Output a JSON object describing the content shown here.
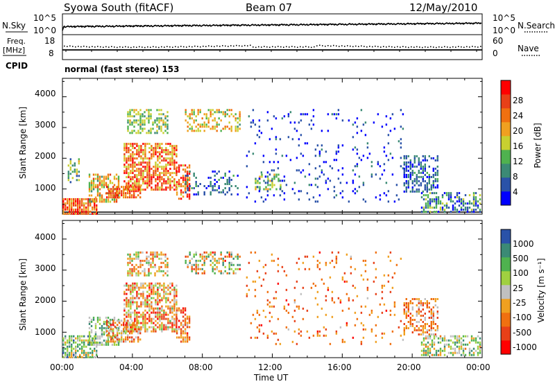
{
  "header": {
    "station": "Syowa South (fitACF)",
    "beam": "Beam 07",
    "date": "12/May/2010"
  },
  "top_panel": {
    "nsky_label": "N.Sky",
    "nsearch_label": "N.Search",
    "left_ticks": [
      "10^5",
      "10^0"
    ],
    "right_ticks": [
      "10^5",
      "10^0"
    ]
  },
  "freq_panel": {
    "freq_label_1": "Freq.",
    "freq_label_2": "[MHz]",
    "nave_label": "Nave",
    "left_ticks": [
      "18",
      "8"
    ],
    "right_ticks": [
      "60",
      "0"
    ],
    "cpid_label": "CPID",
    "cpid_text": "normal (fast stereo) 153"
  },
  "x_axis": {
    "title": "Time UT",
    "ticks": [
      "00:00",
      "04:00",
      "08:00",
      "12:00",
      "16:00",
      "20:00",
      "00:00"
    ]
  },
  "power_panel": {
    "ylabel": "Slant Range [km]",
    "y_ticks": [
      "4000",
      "3000",
      "2000",
      "1000"
    ],
    "colorbar_label": "Power [dB]",
    "colorbar_ticks": [
      "28",
      "24",
      "20",
      "16",
      "12",
      "8",
      "4"
    ]
  },
  "velocity_panel": {
    "ylabel": "Slant Range [km]",
    "y_ticks": [
      "4000",
      "3000",
      "2000",
      "1000"
    ],
    "colorbar_label": "Velocity [m s⁻¹]",
    "colorbar_ticks": [
      "1000",
      "500",
      "100",
      "25",
      "-25",
      "-100",
      "-500",
      "-1000"
    ]
  },
  "colors": {
    "power_scale": [
      "#0000ff",
      "#2a52a8",
      "#3b8a75",
      "#4fb24f",
      "#c8d030",
      "#f0a020",
      "#f07010",
      "#e84018",
      "#ff0000"
    ],
    "velocity_scale": [
      "#ff0000",
      "#e84018",
      "#f07010",
      "#f0a020",
      "#c0c0c0",
      "#a0d040",
      "#4fb24f",
      "#3b8a75",
      "#2a52a8"
    ]
  },
  "chart_data": [
    {
      "type": "heatmap",
      "name": "power",
      "x_range_hours": [
        0,
        24
      ],
      "y_range_km": [
        180,
        4600
      ],
      "regions": [
        {
          "t": [
            0.0,
            2.0
          ],
          "r": [
            200,
            700
          ],
          "density": 0.85,
          "level": [
            0.55,
            1.0
          ]
        },
        {
          "t": [
            0.3,
            1.0
          ],
          "r": [
            1200,
            2000
          ],
          "density": 0.5,
          "level": [
            0.2,
            0.6
          ]
        },
        {
          "t": [
            1.5,
            3.2
          ],
          "r": [
            600,
            1500
          ],
          "density": 0.55,
          "level": [
            0.3,
            0.8
          ]
        },
        {
          "t": [
            2.5,
            4.5
          ],
          "r": [
            700,
            1100
          ],
          "density": 0.8,
          "level": [
            0.6,
            1.0
          ]
        },
        {
          "t": [
            3.5,
            6.5
          ],
          "r": [
            1000,
            2500
          ],
          "density": 0.7,
          "level": [
            0.45,
            1.0
          ]
        },
        {
          "t": [
            3.7,
            6.0
          ],
          "r": [
            2800,
            3600
          ],
          "density": 0.5,
          "level": [
            0.25,
            0.6
          ]
        },
        {
          "t": [
            6.5,
            7.3
          ],
          "r": [
            700,
            1800
          ],
          "density": 0.6,
          "level": [
            0.5,
            1.0
          ]
        },
        {
          "t": [
            7.0,
            10.2
          ],
          "r": [
            2900,
            3600
          ],
          "density": 0.45,
          "level": [
            0.3,
            0.75
          ]
        },
        {
          "t": [
            7.0,
            10.0
          ],
          "r": [
            800,
            1600
          ],
          "density": 0.25,
          "level": [
            0.05,
            0.35
          ]
        },
        {
          "t": [
            11.0,
            12.5
          ],
          "r": [
            1000,
            1500
          ],
          "density": 0.45,
          "level": [
            0.3,
            0.6
          ]
        },
        {
          "t": [
            10.5,
            19.5
          ],
          "r": [
            600,
            3600
          ],
          "density": 0.07,
          "level": [
            0.0,
            0.25
          ]
        },
        {
          "t": [
            19.5,
            21.5
          ],
          "r": [
            900,
            2100
          ],
          "density": 0.55,
          "level": [
            0.05,
            0.35
          ]
        },
        {
          "t": [
            20.5,
            23.9
          ],
          "r": [
            250,
            900
          ],
          "density": 0.55,
          "level": [
            0.05,
            0.5
          ]
        }
      ]
    },
    {
      "type": "heatmap",
      "name": "velocity",
      "x_range_hours": [
        0,
        24
      ],
      "y_range_km": [
        180,
        4600
      ],
      "regions": [
        {
          "t": [
            0.0,
            2.0
          ],
          "r": [
            200,
            900
          ],
          "density": 0.7,
          "level": [
            0.35,
            0.9
          ]
        },
        {
          "t": [
            1.5,
            3.2
          ],
          "r": [
            600,
            1500
          ],
          "density": 0.5,
          "level": [
            0.45,
            0.85
          ]
        },
        {
          "t": [
            2.5,
            4.5
          ],
          "r": [
            700,
            1400
          ],
          "density": 0.6,
          "level": [
            0.1,
            0.6
          ]
        },
        {
          "t": [
            3.5,
            6.5
          ],
          "r": [
            1000,
            2600
          ],
          "density": 0.65,
          "level": [
            0.05,
            0.7
          ]
        },
        {
          "t": [
            3.7,
            6.0
          ],
          "r": [
            2800,
            3600
          ],
          "density": 0.5,
          "level": [
            0.15,
            0.75
          ]
        },
        {
          "t": [
            6.5,
            7.3
          ],
          "r": [
            700,
            1800
          ],
          "density": 0.55,
          "level": [
            0.05,
            0.5
          ]
        },
        {
          "t": [
            7.0,
            10.2
          ],
          "r": [
            2900,
            3600
          ],
          "density": 0.4,
          "level": [
            0.1,
            0.9
          ]
        },
        {
          "t": [
            10.5,
            19.5
          ],
          "r": [
            600,
            3600
          ],
          "density": 0.07,
          "level": [
            0.1,
            0.45
          ]
        },
        {
          "t": [
            19.5,
            21.5
          ],
          "r": [
            900,
            2100
          ],
          "density": 0.5,
          "level": [
            0.1,
            0.55
          ]
        },
        {
          "t": [
            20.5,
            23.9
          ],
          "r": [
            250,
            900
          ],
          "density": 0.5,
          "level": [
            0.3,
            0.9
          ]
        }
      ]
    }
  ]
}
